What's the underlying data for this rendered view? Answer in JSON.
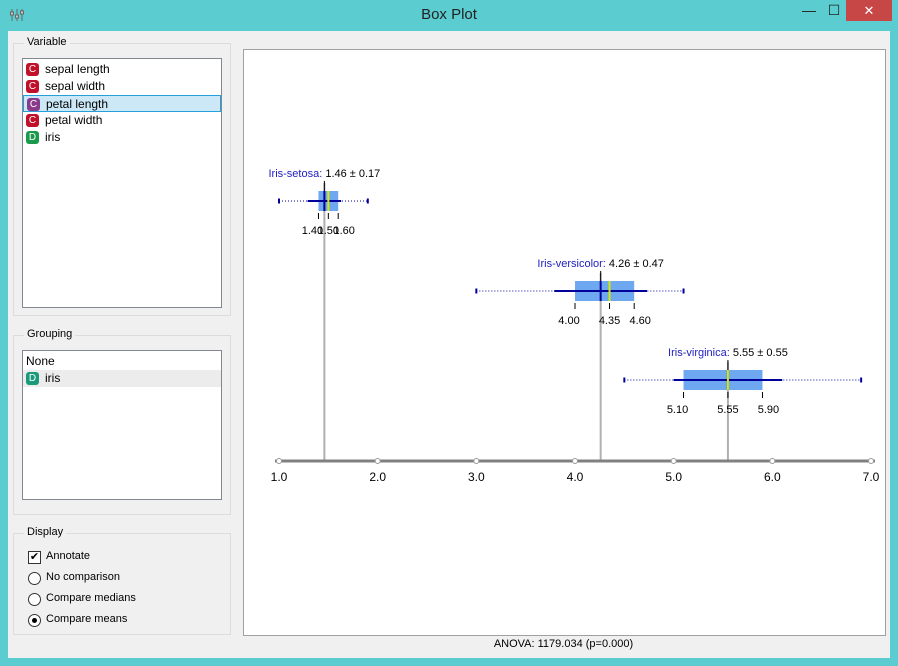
{
  "window": {
    "title": "Box Plot",
    "minimize_glyph": "—",
    "maximize_glyph": "☐",
    "close_glyph": "✕",
    "app_icon": "orange-widget-icon"
  },
  "variable_panel": {
    "title": "Variable",
    "items": [
      {
        "badge": "C",
        "label": "sepal length",
        "badge_color": "#c0102a",
        "selected": false
      },
      {
        "badge": "C",
        "label": "sepal width",
        "badge_color": "#c0102a",
        "selected": false
      },
      {
        "badge": "C",
        "label": "petal length",
        "badge_color": "#8a3a8a",
        "selected": true
      },
      {
        "badge": "C",
        "label": "petal width",
        "badge_color": "#c0102a",
        "selected": false
      },
      {
        "badge": "D",
        "label": "iris",
        "badge_color": "#1a9a4a",
        "selected": false
      }
    ]
  },
  "grouping_panel": {
    "title": "Grouping",
    "items": [
      {
        "badge": "",
        "label": "None"
      },
      {
        "badge": "D",
        "label": "iris",
        "badge_color": "#1a9a7a"
      }
    ]
  },
  "display_panel": {
    "title": "Display",
    "annotate": {
      "label": "Annotate",
      "checked": true
    },
    "options": [
      {
        "label": "No comparison",
        "selected": false
      },
      {
        "label": "Compare medians",
        "selected": false
      },
      {
        "label": "Compare means",
        "selected": true
      }
    ]
  },
  "status": "ANOVA: 1179.034 (p=0.000)",
  "chart_data": {
    "type": "box",
    "xlim": [
      1.0,
      7.0
    ],
    "ticks": [
      "1.0",
      "2.0",
      "3.0",
      "4.0",
      "5.0",
      "6.0",
      "7.0"
    ],
    "grid": false,
    "series": [
      {
        "name": "Iris-setosa",
        "stats": "1.46 ± 0.17",
        "min": 1.0,
        "q1": 1.4,
        "median": 1.5,
        "q3": 1.6,
        "max": 1.9,
        "mean": 1.46,
        "sd": 0.17,
        "labels": [
          "1.40",
          "1.50",
          "1.60"
        ]
      },
      {
        "name": "Iris-versicolor",
        "stats": "4.26 ± 0.47",
        "min": 3.0,
        "q1": 4.0,
        "median": 4.35,
        "q3": 4.6,
        "max": 5.1,
        "mean": 4.26,
        "sd": 0.47,
        "labels": [
          "4.00",
          "4.35",
          "4.60"
        ]
      },
      {
        "name": "Iris-virginica",
        "stats": "5.55 ± 0.55",
        "min": 4.5,
        "q1": 5.1,
        "median": 5.55,
        "q3": 5.9,
        "max": 6.9,
        "mean": 5.55,
        "sd": 0.55,
        "labels": [
          "5.10",
          "5.55",
          "5.90"
        ]
      }
    ],
    "colors": {
      "box": "#6ea8f0",
      "mean": "#00009a",
      "median": "#d8e800",
      "label": "#2020c0",
      "axis": "#808080"
    }
  }
}
